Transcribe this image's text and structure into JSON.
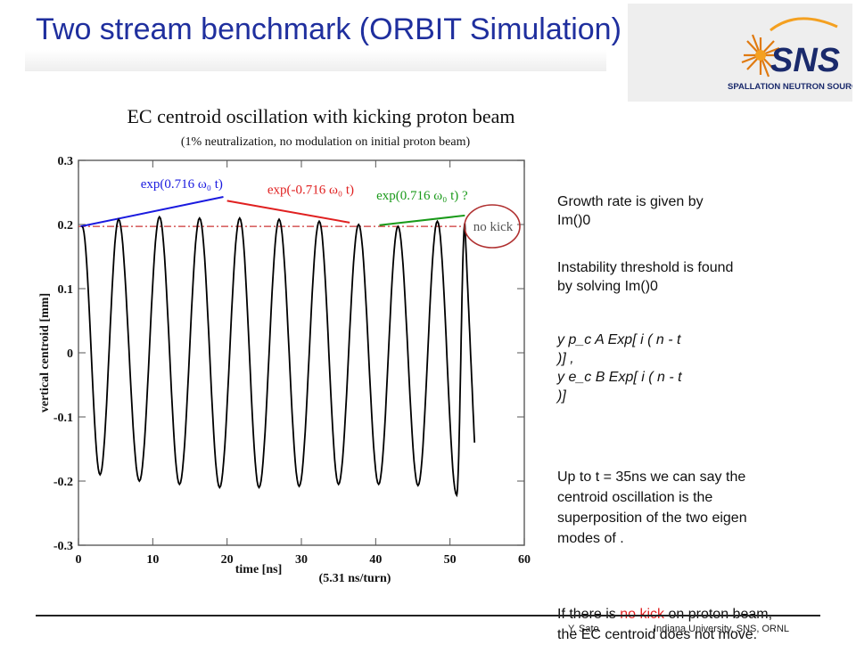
{
  "slide": {
    "title": "Two stream benchmark (ORBIT Simulation)",
    "logo_text": "SNS",
    "logo_subtext": "SPALLATION NEUTRON SOURCE",
    "footer_left_glyphs": "",
    "footer_author": "Y. Sato",
    "footer_affiliation": "Indiana University,  SNS, ORNL"
  },
  "text_panel": {
    "growth_line1": "Growth rate is given by",
    "growth_line2": "Im()0",
    "threshold_line1": "Instability threshold is found",
    "threshold_line2": "by solving Im()0",
    "eq1_a": "y p_c  A Exp[ i ( n  -   t",
    "eq1_b": ")] ,",
    "eq2_a": "y e_c  B Exp[ i ( n  -   t",
    "eq2_b": ")]",
    "upto_1": "Up to t = 35ns we can say the",
    "upto_2": "centroid oscillation is the",
    "upto_3": "superposition of the two eigen",
    "upto_4": "modes of  .",
    "nokick_pre": "If there is ",
    "nokick_red": "no kick",
    "nokick_post": " on proton beam,",
    "nokick_2": "the EC centroid does not move."
  },
  "chart_data": {
    "type": "line",
    "title": "EC centroid oscillation with kicking proton beam",
    "subtitle": "(1% neutralization,  no modulation on initial proton beam)",
    "xlabel": "time [ns]",
    "xlabel_note": "(5.31 ns/turn)",
    "ylabel": "vertical centroid [mm]",
    "xlim": [
      0,
      60
    ],
    "ylim": [
      -0.3,
      0.3
    ],
    "xticks": [
      "0",
      "10",
      "20",
      "30",
      "40",
      "50",
      "60"
    ],
    "yticks": [
      "0.3",
      "0.2",
      "0.1",
      "0",
      "-0.1",
      "-0.2",
      "-0.3"
    ],
    "grid": false,
    "series": [
      {
        "color": "#000000",
        "peaks_x": [
          0.5,
          5.4,
          10.9,
          16.3,
          21.7,
          27.0,
          32.4,
          37.7,
          43.0,
          48.3,
          52.0
        ],
        "peaks_y": [
          0.197,
          0.208,
          0.212,
          0.21,
          0.21,
          0.208,
          0.205,
          0.2,
          0.197,
          0.205,
          0.202
        ],
        "troughs_x": [
          2.9,
          8.2,
          13.6,
          19.0,
          24.3,
          29.7,
          35.0,
          40.4,
          45.7,
          50.9
        ],
        "troughs_y": [
          -0.19,
          -0.2,
          -0.205,
          -0.21,
          -0.21,
          -0.208,
          -0.205,
          -0.205,
          -0.207,
          -0.222
        ],
        "end": [
          53.3,
          -0.14
        ]
      }
    ],
    "reference_line": {
      "y": 0.197,
      "x_end": 52,
      "color": "#cc3333",
      "label": "no kick"
    },
    "fits": [
      {
        "label": "exp(0.716 ω₀ t)",
        "color": "#1a1adf",
        "x": [
          0.3,
          19.5
        ],
        "y": [
          0.197,
          0.243
        ]
      },
      {
        "label": "exp(-0.716 ω₀ t)",
        "color": "#e02020",
        "x": [
          20,
          36.5
        ],
        "y": [
          0.237,
          0.203
        ]
      },
      {
        "label": "exp(0.716 ω₀ t)  ?",
        "color": "#1a9a1a",
        "x": [
          40.5,
          52
        ],
        "y": [
          0.199,
          0.214
        ]
      }
    ]
  }
}
